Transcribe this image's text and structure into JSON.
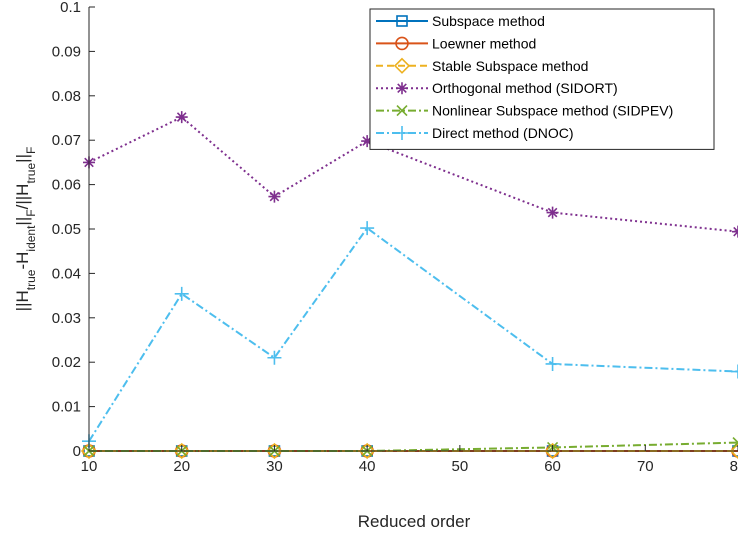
{
  "chart_data": {
    "type": "line",
    "title": "",
    "xlabel": "Reduced order",
    "ylabel": {
      "parts": [
        {
          "text": "||H",
          "sub": false
        },
        {
          "text": "true",
          "sub": true
        },
        {
          "text": "-H",
          "sub": false
        },
        {
          "text": "ident",
          "sub": true
        },
        {
          "text": "||",
          "sub": false
        },
        {
          "text": "F",
          "sub": true
        },
        {
          "text": "/||H",
          "sub": false
        },
        {
          "text": "true",
          "sub": true
        },
        {
          "text": "||",
          "sub": false
        },
        {
          "text": "F",
          "sub": true
        }
      ]
    },
    "xlim": [
      10,
      80
    ],
    "ylim": [
      0,
      0.1
    ],
    "xticks": [
      10,
      20,
      30,
      40,
      50,
      60,
      70,
      80
    ],
    "yticks": [
      0,
      0.01,
      0.02,
      0.03,
      0.04,
      0.05,
      0.06,
      0.07,
      0.08,
      0.09,
      0.1
    ],
    "xtick_labels": [
      "10",
      "20",
      "30",
      "40",
      "50",
      "60",
      "70",
      "80"
    ],
    "ytick_labels": [
      "0",
      "0.01",
      "0.02",
      "0.03",
      "0.04",
      "0.05",
      "0.06",
      "0.07",
      "0.08",
      "0.09",
      "0.1"
    ],
    "grid": false,
    "legend_position": "top-right",
    "x": [
      10,
      20,
      30,
      40,
      60,
      80
    ],
    "series": [
      {
        "name": "Subspace method",
        "values": [
          0,
          0,
          0,
          0,
          0,
          0
        ],
        "color": "#0072BD",
        "dash": "solid",
        "marker": "square"
      },
      {
        "name": "Loewner method",
        "values": [
          0,
          0,
          0,
          0,
          0,
          0
        ],
        "color": "#D95319",
        "dash": "solid",
        "marker": "circle"
      },
      {
        "name": "Stable Subspace method",
        "values": [
          0,
          0,
          0,
          0,
          0,
          0
        ],
        "color": "#EDB120",
        "dash": "dashed",
        "marker": "diamond"
      },
      {
        "name": "Orthogonal method (SIDORT)",
        "values": [
          0.065,
          0.0752,
          0.0573,
          0.0698,
          0.0537,
          0.0494
        ],
        "color": "#7E2F8E",
        "dash": "dotted",
        "marker": "asterisk"
      },
      {
        "name": "Nonlinear Subspace method (SIDPEV)",
        "values": [
          0,
          0,
          0,
          0,
          0.0008,
          0.0019
        ],
        "color": "#77AC30",
        "dash": "dashdot",
        "marker": "x"
      },
      {
        "name": "Direct method (DNOC)",
        "values": [
          0.0022,
          0.0354,
          0.021,
          0.0502,
          0.0196,
          0.0179
        ],
        "color": "#4DBEEE",
        "dash": "dashdot",
        "marker": "plus"
      }
    ]
  }
}
